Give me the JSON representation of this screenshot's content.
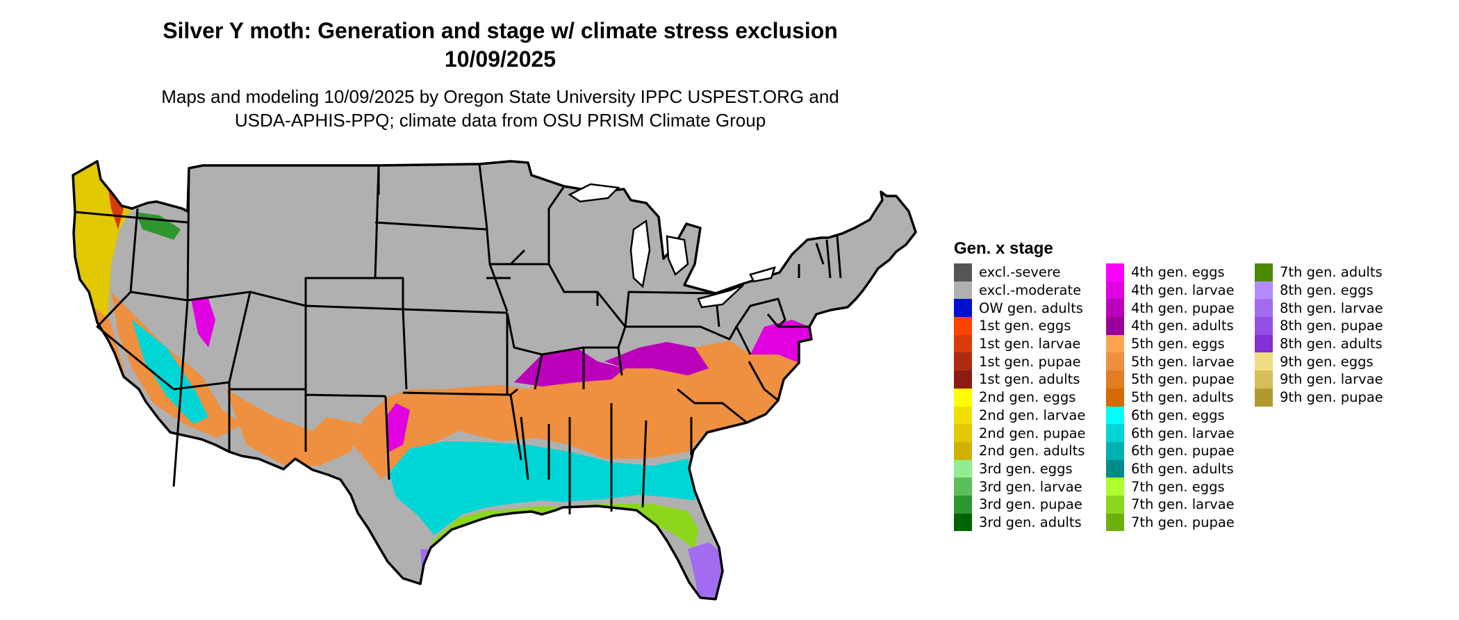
{
  "title": {
    "line1": "Silver Y moth: Generation and stage w/ climate stress exclusion",
    "line2": "10/09/2025"
  },
  "subtitle": {
    "line1": "Maps and modeling 10/09/2025 by Oregon State University IPPC USPEST.ORG and",
    "line2": "USDA-APHIS-PPQ; climate data from OSU PRISM Climate Group"
  },
  "legend": {
    "title": "Gen. x stage",
    "columns": [
      [
        {
          "label": "excl.-severe",
          "color": "#555555"
        },
        {
          "label": "excl.-moderate",
          "color": "#b0b0b0"
        },
        {
          "label": "OW gen. adults",
          "color": "#0010d0"
        },
        {
          "label": "1st gen. eggs",
          "color": "#ff4400"
        },
        {
          "label": "1st gen. larvae",
          "color": "#d93a0c"
        },
        {
          "label": "1st gen. pupae",
          "color": "#b02a12"
        },
        {
          "label": "1st gen. adults",
          "color": "#8b1a12"
        },
        {
          "label": "2nd gen. eggs",
          "color": "#ffff00"
        },
        {
          "label": "2nd gen. larvae",
          "color": "#f0e000"
        },
        {
          "label": "2nd gen. pupae",
          "color": "#e2c800"
        },
        {
          "label": "2nd gen. adults",
          "color": "#d2b000"
        },
        {
          "label": "3rd gen. eggs",
          "color": "#90ee90"
        },
        {
          "label": "3rd gen. larvae",
          "color": "#5cbf5c"
        },
        {
          "label": "3rd gen. pupae",
          "color": "#2e962e"
        },
        {
          "label": "3rd gen. adults",
          "color": "#006400"
        }
      ],
      [
        {
          "label": "4th gen. eggs",
          "color": "#ff00ff"
        },
        {
          "label": "4th gen. larvae",
          "color": "#e000e0"
        },
        {
          "label": "4th gen. pupae",
          "color": "#bb00bb"
        },
        {
          "label": "4th gen. adults",
          "color": "#990099"
        },
        {
          "label": "5th gen. eggs",
          "color": "#ffa550"
        },
        {
          "label": "5th gen. larvae",
          "color": "#ee9040"
        },
        {
          "label": "5th gen. pupae",
          "color": "#e27c22"
        },
        {
          "label": "5th gen. adults",
          "color": "#d56a00"
        },
        {
          "label": "6th gen. eggs",
          "color": "#00ffff"
        },
        {
          "label": "6th gen. larvae",
          "color": "#00d6d6"
        },
        {
          "label": "6th gen. pupae",
          "color": "#00b0b0"
        },
        {
          "label": "6th gen. adults",
          "color": "#008b8b"
        },
        {
          "label": "7th gen. eggs",
          "color": "#adff2f"
        },
        {
          "label": "7th gen. larvae",
          "color": "#8cd61c"
        },
        {
          "label": "7th gen. pupae",
          "color": "#6cb00e"
        }
      ],
      [
        {
          "label": "7th gen. adults",
          "color": "#4a8a00"
        },
        {
          "label": "8th gen. eggs",
          "color": "#b48cff"
        },
        {
          "label": "8th gen. larvae",
          "color": "#a26cf0"
        },
        {
          "label": "8th gen. pupae",
          "color": "#9450e4"
        },
        {
          "label": "8th gen. adults",
          "color": "#8430d4"
        },
        {
          "label": "9th gen. eggs",
          "color": "#f0dc82"
        },
        {
          "label": "9th gen. larvae",
          "color": "#d6bf5a"
        },
        {
          "label": "9th gen. pupae",
          "color": "#b09a30"
        }
      ]
    ]
  }
}
